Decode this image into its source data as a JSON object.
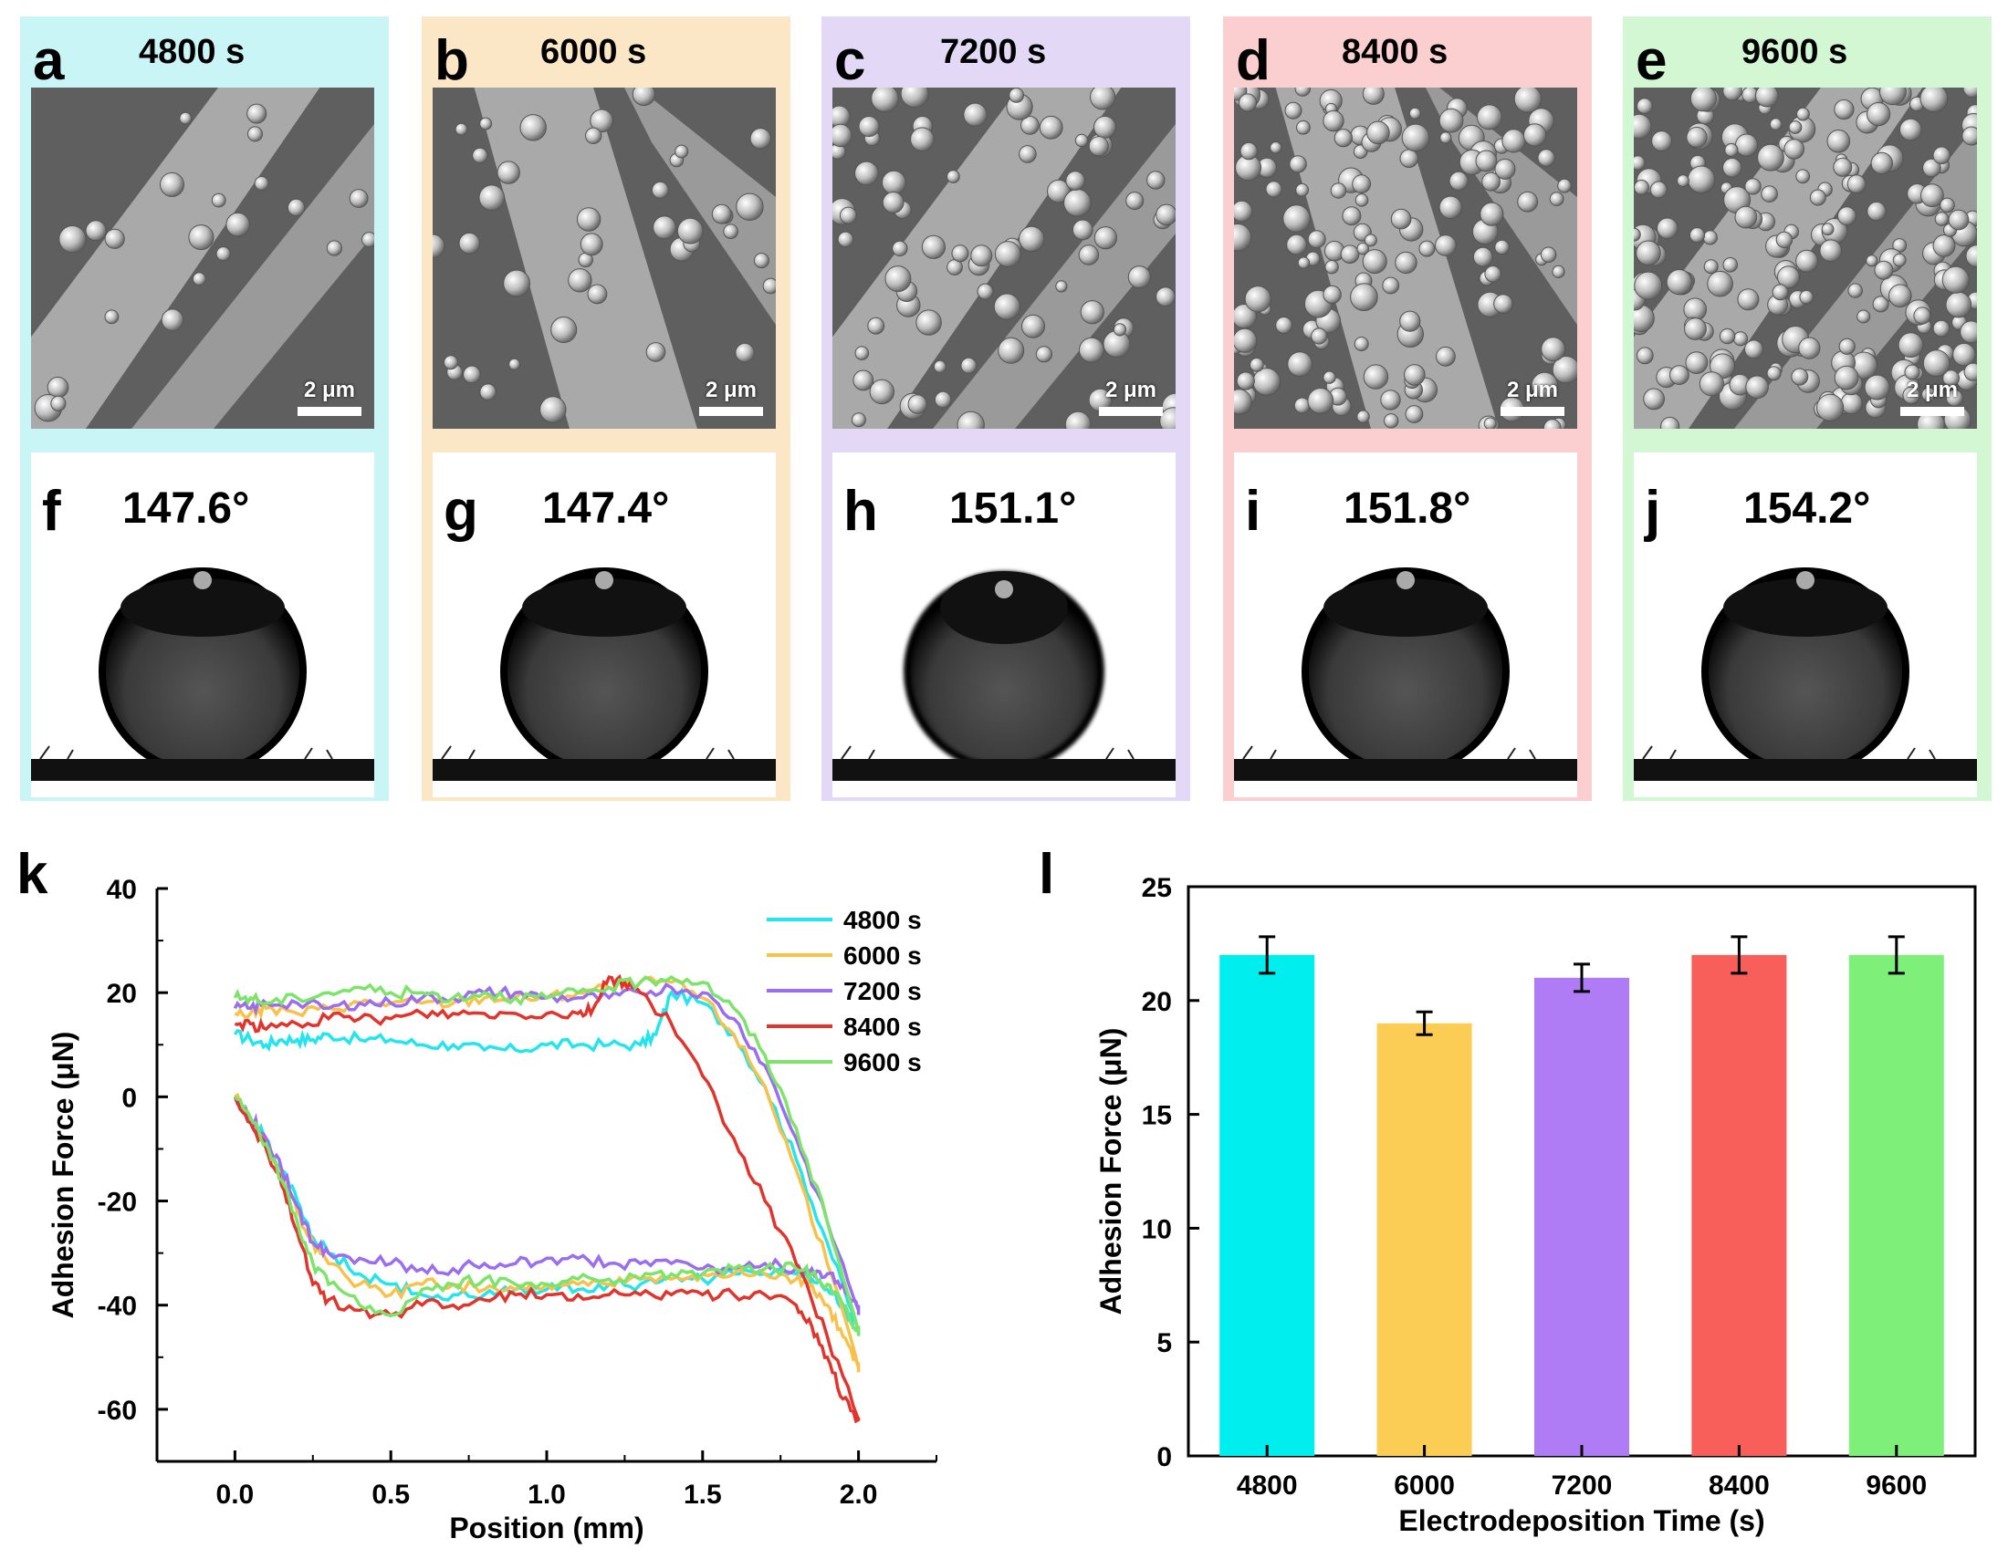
{
  "panels": [
    {
      "letter": "a",
      "time": "4800 s",
      "scale": "2 μm",
      "angle_letter": "f",
      "angle": "147.6°",
      "bg": "#c9f5f7"
    },
    {
      "letter": "b",
      "time": "6000 s",
      "scale": "2 μm",
      "angle_letter": "g",
      "angle": "147.4°",
      "bg": "#fbe6c6"
    },
    {
      "letter": "c",
      "time": "7200 s",
      "scale": "2 μm",
      "angle_letter": "h",
      "angle": "151.1°",
      "bg": "#e3d9f7"
    },
    {
      "letter": "d",
      "time": "8400 s",
      "scale": "2 μm",
      "angle_letter": "i",
      "angle": "151.8°",
      "bg": "#fbcfcf"
    },
    {
      "letter": "e",
      "time": "9600 s",
      "scale": "2 μm",
      "angle_letter": "j",
      "angle": "154.2°",
      "bg": "#d3f6d3"
    }
  ],
  "chart_data": [
    {
      "panel": "k",
      "type": "line",
      "xlabel": "Position (mm)",
      "ylabel": "Adhesion Force (μN)",
      "xlim": [
        -0.25,
        2.25
      ],
      "ylim": [
        -70,
        40
      ],
      "xticks": [
        "0.0",
        "0.5",
        "1.0",
        "1.5",
        "2.0"
      ],
      "xtick_values": [
        0.0,
        0.5,
        1.0,
        1.5,
        2.0
      ],
      "yticks": [
        "40",
        "20",
        "0",
        "-20",
        "-40",
        "-60"
      ],
      "ytick_values": [
        40,
        20,
        0,
        -20,
        -40,
        -60
      ],
      "series": [
        {
          "name": "4800 s",
          "color": "#22e5ee",
          "x": [
            0.0,
            0.05,
            0.1,
            0.15,
            0.2,
            0.25,
            0.3,
            0.4,
            0.5,
            0.6,
            0.7,
            0.8,
            0.9,
            1.0,
            1.1,
            1.2,
            1.3,
            1.35,
            1.4,
            1.5,
            1.6,
            1.7,
            1.8,
            1.9,
            2.0,
            2.0,
            1.95,
            1.9,
            1.85,
            1.8,
            1.7,
            1.6,
            1.5,
            1.4,
            1.3,
            1.2,
            1.1,
            1.0,
            0.9,
            0.8,
            0.7,
            0.6,
            0.5,
            0.4,
            0.3,
            0.25,
            0.2,
            0.15,
            0.1,
            0.05,
            0.0
          ],
          "y": [
            12,
            11,
            10,
            11,
            11,
            11,
            12,
            11,
            11,
            10,
            10,
            9,
            9,
            10,
            10,
            10,
            10,
            12,
            20,
            18,
            12,
            2,
            -12,
            -28,
            -45,
            -45,
            -40,
            -37,
            -35,
            -34,
            -34,
            -34,
            -35,
            -35,
            -36,
            -36,
            -37,
            -37,
            -37,
            -38,
            -38,
            -38,
            -36,
            -34,
            -30,
            -27,
            -20,
            -14,
            -8,
            -4,
            0
          ]
        },
        {
          "name": "6000 s",
          "color": "#f8c14a",
          "x": [
            0.0,
            0.05,
            0.1,
            0.2,
            0.3,
            0.4,
            0.5,
            0.6,
            0.7,
            0.8,
            0.9,
            1.0,
            1.1,
            1.2,
            1.3,
            1.4,
            1.5,
            1.6,
            1.7,
            1.8,
            1.9,
            2.0,
            2.0,
            1.95,
            1.9,
            1.85,
            1.8,
            1.7,
            1.6,
            1.5,
            1.4,
            1.3,
            1.2,
            1.1,
            1.0,
            0.9,
            0.8,
            0.7,
            0.6,
            0.5,
            0.4,
            0.3,
            0.25,
            0.2,
            0.15,
            0.1,
            0.05,
            0.0
          ],
          "y": [
            16,
            16,
            17,
            16,
            17,
            18,
            18,
            18,
            18,
            19,
            19,
            19,
            20,
            21,
            22,
            22,
            19,
            12,
            2,
            -14,
            -32,
            -52,
            -52,
            -46,
            -40,
            -36,
            -35,
            -34,
            -34,
            -34,
            -35,
            -35,
            -36,
            -36,
            -36,
            -37,
            -37,
            -36,
            -36,
            -38,
            -36,
            -32,
            -28,
            -22,
            -15,
            -9,
            -4,
            0
          ]
        },
        {
          "name": "7200 s",
          "color": "#9b6ef0",
          "x": [
            0.0,
            0.05,
            0.1,
            0.2,
            0.3,
            0.4,
            0.5,
            0.6,
            0.7,
            0.8,
            0.9,
            1.0,
            1.1,
            1.2,
            1.3,
            1.4,
            1.5,
            1.6,
            1.7,
            1.8,
            1.9,
            2.0,
            2.0,
            1.95,
            1.9,
            1.85,
            1.8,
            1.7,
            1.6,
            1.5,
            1.4,
            1.3,
            1.2,
            1.1,
            1.0,
            0.9,
            0.8,
            0.7,
            0.6,
            0.5,
            0.4,
            0.3,
            0.25,
            0.2,
            0.15,
            0.1,
            0.05,
            0.0
          ],
          "y": [
            17,
            17,
            18,
            18,
            17,
            18,
            18,
            19,
            19,
            20,
            20,
            19,
            19,
            19,
            20,
            21,
            20,
            15,
            6,
            -8,
            -24,
            -41,
            -41,
            -36,
            -34,
            -33,
            -33,
            -32,
            -33,
            -33,
            -32,
            -32,
            -32,
            -31,
            -31,
            -32,
            -32,
            -33,
            -33,
            -32,
            -31,
            -30,
            -28,
            -21,
            -14,
            -8,
            -4,
            0
          ]
        },
        {
          "name": "8400 s",
          "color": "#e0342c",
          "x": [
            0.0,
            0.05,
            0.1,
            0.2,
            0.3,
            0.4,
            0.5,
            0.6,
            0.7,
            0.8,
            0.9,
            1.0,
            1.1,
            1.15,
            1.2,
            1.25,
            1.3,
            1.4,
            1.5,
            1.6,
            1.7,
            1.8,
            1.9,
            2.0,
            2.0,
            1.95,
            1.9,
            1.85,
            1.8,
            1.7,
            1.6,
            1.5,
            1.4,
            1.3,
            1.2,
            1.1,
            1.0,
            0.9,
            0.8,
            0.7,
            0.6,
            0.5,
            0.4,
            0.3,
            0.25,
            0.2,
            0.15,
            0.1,
            0.05,
            0.0
          ],
          "y": [
            14,
            14,
            13,
            14,
            15,
            15,
            15,
            16,
            16,
            16,
            16,
            16,
            16,
            17,
            23,
            22,
            20,
            14,
            4,
            -8,
            -20,
            -32,
            -46,
            -62,
            -62,
            -58,
            -50,
            -44,
            -40,
            -38,
            -38,
            -38,
            -38,
            -38,
            -38,
            -38,
            -38,
            -38,
            -39,
            -40,
            -40,
            -42,
            -41,
            -39,
            -36,
            -26,
            -17,
            -10,
            -5,
            0
          ]
        },
        {
          "name": "9600 s",
          "color": "#7ce46a",
          "x": [
            0.0,
            0.05,
            0.1,
            0.2,
            0.3,
            0.4,
            0.5,
            0.6,
            0.7,
            0.8,
            0.9,
            1.0,
            1.1,
            1.2,
            1.3,
            1.4,
            1.5,
            1.6,
            1.7,
            1.8,
            1.9,
            2.0,
            2.0,
            1.95,
            1.9,
            1.85,
            1.8,
            1.7,
            1.6,
            1.5,
            1.4,
            1.3,
            1.2,
            1.1,
            1.0,
            0.9,
            0.8,
            0.7,
            0.6,
            0.5,
            0.4,
            0.3,
            0.25,
            0.2,
            0.15,
            0.1,
            0.05,
            0.0
          ],
          "y": [
            19,
            19,
            18,
            19,
            20,
            21,
            20,
            20,
            19,
            20,
            19,
            19,
            20,
            21,
            22,
            23,
            22,
            17,
            8,
            -6,
            -24,
            -45,
            -45,
            -40,
            -36,
            -34,
            -33,
            -33,
            -33,
            -34,
            -34,
            -35,
            -35,
            -35,
            -36,
            -36,
            -35,
            -36,
            -37,
            -42,
            -40,
            -36,
            -32,
            -24,
            -16,
            -9,
            -4,
            0
          ]
        }
      ]
    },
    {
      "panel": "l",
      "type": "bar",
      "xlabel": "Electrodeposition Time (s)",
      "ylabel": "Adhesion Force (μN)",
      "categories": [
        "4800",
        "6000",
        "7200",
        "8400",
        "9600"
      ],
      "values": [
        22,
        19,
        21,
        22,
        22
      ],
      "errors": [
        0.8,
        0.5,
        0.6,
        0.8,
        0.8
      ],
      "colors": [
        "#00eeee",
        "#fbcd55",
        "#b07cf6",
        "#f85e5a",
        "#7ef07a"
      ],
      "ylim": [
        0,
        25
      ],
      "yticks": [
        "0",
        "5",
        "10",
        "15",
        "20",
        "25"
      ],
      "ytick_values": [
        0,
        5,
        10,
        15,
        20,
        25
      ]
    }
  ]
}
